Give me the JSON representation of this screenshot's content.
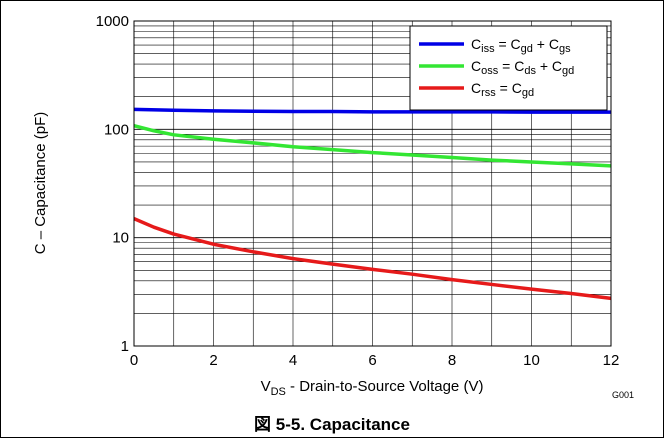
{
  "chart_data": {
    "type": "line",
    "y_scale": "log",
    "grid": true,
    "legend_position": "top-right",
    "xlabel_parts": {
      "main": "V",
      "sub": "DS",
      "rest": " - Drain-to-Source Voltage (V)"
    },
    "ylabel": "C – Capacitance  (pF)",
    "xlim": [
      0,
      12
    ],
    "ylim": [
      1,
      1000
    ],
    "x_ticks": [
      0,
      2,
      4,
      6,
      8,
      10,
      12
    ],
    "y_ticks": [
      1,
      10,
      100,
      1000
    ],
    "series": [
      {
        "color": "#0000e6",
        "legend": [
          {
            "t": "C"
          },
          {
            "t": "iss",
            "sub": true
          },
          {
            "t": " = C"
          },
          {
            "t": "gd",
            "sub": true
          },
          {
            "t": " + C"
          },
          {
            "t": "gs",
            "sub": true
          }
        ],
        "x": [
          0,
          1,
          2,
          3,
          4,
          5,
          6,
          7,
          8,
          9,
          10,
          11,
          12
        ],
        "y": [
          153,
          150,
          148,
          147,
          146,
          146,
          145,
          145,
          145,
          145,
          144,
          144,
          144
        ]
      },
      {
        "color": "#33e633",
        "legend": [
          {
            "t": "C"
          },
          {
            "t": "oss",
            "sub": true
          },
          {
            "t": " = C"
          },
          {
            "t": "ds",
            "sub": true
          },
          {
            "t": " + C"
          },
          {
            "t": "gd",
            "sub": true
          }
        ],
        "x": [
          0,
          0.5,
          1,
          2,
          3,
          4,
          5,
          6,
          7,
          8,
          9,
          10,
          11,
          12
        ],
        "y": [
          108,
          97,
          89,
          81,
          75,
          69,
          65,
          61,
          58,
          55,
          52,
          50,
          48,
          46
        ]
      },
      {
        "color": "#e61a1a",
        "legend": [
          {
            "t": "C"
          },
          {
            "t": "rss",
            "sub": true
          },
          {
            "t": " =  C"
          },
          {
            "t": "gd",
            "sub": true
          }
        ],
        "x": [
          0,
          0.5,
          1,
          2,
          3,
          4,
          5,
          6,
          7,
          8,
          9,
          10,
          11,
          12
        ],
        "y": [
          15,
          12.5,
          10.8,
          8.7,
          7.4,
          6.4,
          5.7,
          5.1,
          4.6,
          4.1,
          3.7,
          3.35,
          3.05,
          2.75
        ]
      }
    ]
  },
  "figure_code": "G001",
  "caption": "図 5-5. Capacitance"
}
